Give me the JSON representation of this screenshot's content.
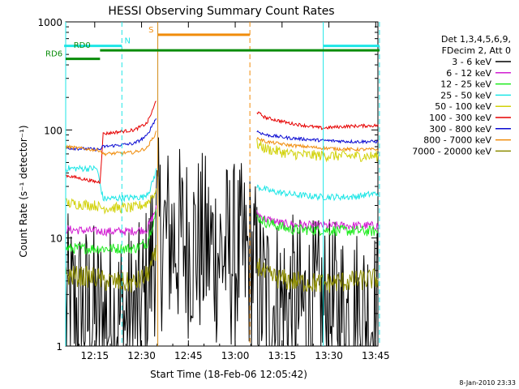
{
  "chart_data": {
    "type": "line",
    "title": "HESSI Observing Summary Count Rates",
    "xlabel": "Start Time (18-Feb-06 12:05:42)",
    "ylabel": "Count Rate (s⁻¹ detector⁻¹)",
    "ylog": true,
    "ylim": [
      1,
      1000
    ],
    "xlim_minutes": [
      0,
      100
    ],
    "x_ticks": [
      {
        "label": "12:15",
        "min": 9.3
      },
      {
        "label": "12:30",
        "min": 24.3
      },
      {
        "label": "12:45",
        "min": 39.3
      },
      {
        "label": "13:00",
        "min": 54.3
      },
      {
        "label": "13:15",
        "min": 69.3
      },
      {
        "label": "13:30",
        "min": 84.3
      },
      {
        "label": "13:45",
        "min": 99.3
      }
    ],
    "y_ticks": [
      {
        "label": "1",
        "v": 1
      },
      {
        "label": "10",
        "v": 10
      },
      {
        "label": "100",
        "v": 100
      },
      {
        "label": "1000",
        "v": 1000
      }
    ],
    "legend": {
      "position": "right",
      "header": [
        "Det 1,3,4,5,6,9,",
        "FDecim 2, Att 0"
      ],
      "items": [
        {
          "label": "3 - 6 keV",
          "color": "#000000"
        },
        {
          "label": "6 - 12 keV",
          "color": "#d21ed2"
        },
        {
          "label": "12 - 25 keV",
          "color": "#1eeb1e"
        },
        {
          "label": "25 - 50 keV",
          "color": "#1ee6e6"
        },
        {
          "label": "50 - 100 keV",
          "color": "#d2d20a"
        },
        {
          "label": "100 - 300 keV",
          "color": "#e60000"
        },
        {
          "label": "300 - 800 keV",
          "color": "#0a0ad2"
        },
        {
          "label": "800 - 7000 keV",
          "color": "#f08c0a"
        },
        {
          "label": "7000 - 20000 keV",
          "color": "#8c8c00"
        }
      ]
    },
    "series": [
      {
        "name": "3 - 6 keV",
        "color": "#000000",
        "noise": 0.9,
        "points": [
          [
            0,
            2.2
          ],
          [
            4,
            2
          ],
          [
            10,
            1.8
          ],
          [
            18,
            1.7
          ],
          [
            24,
            1.8
          ],
          [
            26,
            3
          ],
          [
            28,
            8
          ],
          [
            29,
            11
          ],
          [
            60,
            6
          ],
          [
            62,
            3
          ],
          [
            68,
            2.3
          ],
          [
            78,
            2
          ],
          [
            88,
            1.9
          ],
          [
            100,
            1.8
          ]
        ]
      },
      {
        "name": "6 - 12 keV",
        "color": "#d21ed2",
        "noise": 0.04,
        "points": [
          [
            0,
            12
          ],
          [
            11,
            11.5
          ],
          [
            12,
            11.5
          ],
          [
            20,
            11.5
          ],
          [
            26,
            12
          ],
          [
            28,
            16
          ],
          [
            29,
            19
          ],
          [
            61,
            17
          ],
          [
            64,
            15
          ],
          [
            70,
            13.5
          ],
          [
            80,
            13
          ],
          [
            100,
            13
          ]
        ]
      },
      {
        "name": "12 - 25 keV",
        "color": "#1eeb1e",
        "noise": 0.05,
        "points": [
          [
            0,
            8
          ],
          [
            10,
            8
          ],
          [
            12,
            8
          ],
          [
            22,
            8
          ],
          [
            26,
            9
          ],
          [
            28,
            14
          ],
          [
            29,
            17
          ],
          [
            61,
            16
          ],
          [
            64,
            14
          ],
          [
            72,
            12
          ],
          [
            100,
            11.5
          ]
        ]
      },
      {
        "name": "25 - 50 keV",
        "color": "#1ee6e6",
        "noise": 0.03,
        "points": [
          [
            0,
            44
          ],
          [
            10,
            44
          ],
          [
            12,
            23
          ],
          [
            25,
            24
          ],
          [
            27,
            28
          ],
          [
            28.5,
            38
          ],
          [
            29,
            42
          ],
          [
            61,
            30
          ],
          [
            66,
            27
          ],
          [
            74,
            25
          ],
          [
            82,
            24
          ],
          [
            92,
            24
          ],
          [
            100,
            26
          ]
        ]
      },
      {
        "name": "50 - 100 keV",
        "color": "#d2d20a",
        "noise": 0.05,
        "points": [
          [
            0,
            21
          ],
          [
            10,
            20
          ],
          [
            11,
            19
          ],
          [
            12,
            19
          ],
          [
            22,
            19
          ],
          [
            26,
            21
          ],
          [
            28,
            25
          ],
          [
            29,
            28
          ],
          [
            61,
            75
          ],
          [
            64,
            67
          ],
          [
            72,
            60
          ],
          [
            80,
            58
          ],
          [
            100,
            57
          ]
        ]
      },
      {
        "name": "100 - 300 keV",
        "color": "#e60000",
        "noise": 0.015,
        "points": [
          [
            0,
            38
          ],
          [
            10,
            33
          ],
          [
            11,
            33
          ],
          [
            12,
            92
          ],
          [
            22,
            100
          ],
          [
            26,
            115
          ],
          [
            28,
            155
          ],
          [
            29,
            190
          ],
          [
            61,
            148
          ],
          [
            64,
            130
          ],
          [
            72,
            115
          ],
          [
            82,
            104
          ],
          [
            90,
            108
          ],
          [
            100,
            110
          ]
        ]
      },
      {
        "name": "300 - 800 keV",
        "color": "#0a0ad2",
        "noise": 0.015,
        "points": [
          [
            0,
            68
          ],
          [
            10,
            66
          ],
          [
            11,
            66
          ],
          [
            12,
            70
          ],
          [
            22,
            75
          ],
          [
            26,
            88
          ],
          [
            28,
            115
          ],
          [
            29,
            128
          ],
          [
            61,
            98
          ],
          [
            64,
            90
          ],
          [
            72,
            84
          ],
          [
            82,
            80
          ],
          [
            92,
            78
          ],
          [
            100,
            78
          ]
        ]
      },
      {
        "name": "800 - 7000 keV",
        "color": "#f08c0a",
        "noise": 0.015,
        "points": [
          [
            0,
            70
          ],
          [
            10,
            65
          ],
          [
            11,
            65
          ],
          [
            12,
            60
          ],
          [
            22,
            62
          ],
          [
            26,
            68
          ],
          [
            28,
            85
          ],
          [
            29,
            95
          ],
          [
            61,
            85
          ],
          [
            64,
            78
          ],
          [
            72,
            72
          ],
          [
            82,
            68
          ],
          [
            92,
            66
          ],
          [
            100,
            66
          ]
        ]
      },
      {
        "name": "7000 - 20000 keV",
        "color": "#8c8c00",
        "noise": 0.1,
        "points": [
          [
            0,
            4.5
          ],
          [
            10,
            4.3
          ],
          [
            12,
            4
          ],
          [
            22,
            3.8
          ],
          [
            26,
            4.5
          ],
          [
            28,
            6
          ],
          [
            29,
            7
          ],
          [
            61,
            6
          ],
          [
            64,
            4.5
          ],
          [
            72,
            4
          ],
          [
            82,
            3.8
          ],
          [
            92,
            4
          ],
          [
            100,
            4.2
          ]
        ]
      }
    ],
    "vlines": [
      {
        "min": 0,
        "color": "#1ee6e6",
        "dash": false
      },
      {
        "min": 18,
        "color": "#1ee6e6",
        "dash": true
      },
      {
        "min": 29.5,
        "color": "#d28c14",
        "dash": false
      },
      {
        "min": 59,
        "color": "#f08c0a",
        "dash": true
      },
      {
        "min": 82.5,
        "color": "#1ee6e6",
        "dash": false
      },
      {
        "min": 100.5,
        "color": "#1ee6e6",
        "dash": true
      }
    ],
    "bars": [
      {
        "label": "N",
        "color": "#1ee6e6",
        "from_min": -0.5,
        "to_min": 18,
        "v": 600,
        "label_min": 18.3
      },
      {
        "label": "S",
        "color": "#f08c0a",
        "from_min": 29.5,
        "to_min": 59,
        "v": 760,
        "label_min": 26
      },
      {
        "label": "",
        "color": "#1ee6e6",
        "from_min": 82.5,
        "to_min": 100.5,
        "v": 600,
        "label_min": 82.5
      },
      {
        "label": "RD0",
        "color": "#0a8c0a",
        "from_min": 11,
        "to_min": 100.5,
        "v": 545,
        "label_min": 2
      },
      {
        "label": "RD6",
        "color": "#0a8c0a",
        "from_min": 0,
        "to_min": 11,
        "v": 455,
        "label_min": -7
      }
    ]
  },
  "footer": {
    "stamp": "8-Jan-2010 23:33"
  }
}
